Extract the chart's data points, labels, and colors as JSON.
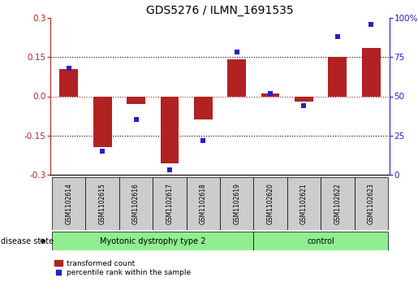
{
  "title": "GDS5276 / ILMN_1691535",
  "samples": [
    "GSM1102614",
    "GSM1102615",
    "GSM1102616",
    "GSM1102617",
    "GSM1102618",
    "GSM1102619",
    "GSM1102620",
    "GSM1102621",
    "GSM1102622",
    "GSM1102623"
  ],
  "bar_values": [
    0.105,
    -0.195,
    -0.03,
    -0.255,
    -0.09,
    0.14,
    0.01,
    -0.02,
    0.15,
    0.185
  ],
  "scatter_values": [
    68,
    15,
    35,
    3,
    22,
    78,
    52,
    44,
    88,
    96
  ],
  "ylim_left": [
    -0.3,
    0.3
  ],
  "ylim_right": [
    0,
    100
  ],
  "yticks_left": [
    -0.3,
    -0.15,
    0.0,
    0.15,
    0.3
  ],
  "yticks_right": [
    0,
    25,
    50,
    75,
    100
  ],
  "ytick_labels_right": [
    "0",
    "25",
    "50",
    "75",
    "100%"
  ],
  "hlines_dotted": [
    0.15,
    -0.15
  ],
  "hline_red": 0.0,
  "bar_color": "#B22222",
  "scatter_color": "#2222CC",
  "group1_label": "Myotonic dystrophy type 2",
  "group2_label": "control",
  "group_color": "#90EE90",
  "group1_indices": [
    0,
    1,
    2,
    3,
    4,
    5
  ],
  "group2_indices": [
    6,
    7,
    8,
    9
  ],
  "disease_state_label": "disease state",
  "legend_bar_label": "transformed count",
  "legend_scatter_label": "percentile rank within the sample",
  "sample_box_color": "#CCCCCC",
  "title_fontsize": 10,
  "tick_fontsize": 7.5,
  "label_fontsize": 7,
  "sample_fontsize": 5.5
}
